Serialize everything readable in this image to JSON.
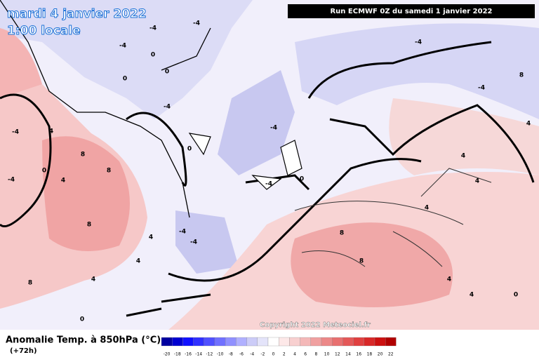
{
  "header": {
    "date": "mardi 4 janvier 2022",
    "time": "1:00 locale",
    "run": "Run ECMWF 0Z du samedi 1 janvier 2022"
  },
  "map": {
    "contour_labels": [
      "-4",
      "-4",
      "-4",
      "0",
      "0",
      "0",
      "-4",
      "-4",
      "0",
      "-4",
      "0",
      "8",
      "8",
      "8",
      "4",
      "0",
      "4",
      "-4",
      "-4",
      "-4",
      "-4",
      "4",
      "4",
      "8",
      "4",
      "8",
      "8",
      "4",
      "4",
      "4",
      "-4",
      "-4",
      "8",
      "4",
      "4",
      "4",
      "0",
      "0"
    ],
    "copyright": "Copyright 2022 Meteociel.fr"
  },
  "legend": {
    "title": "Anomalie Temp. à 850hPa (°C)",
    "subtitle": "(+72h)",
    "labels": [
      -20,
      -18,
      -16,
      -14,
      -12,
      -10,
      -8,
      -6,
      -4,
      -2,
      0,
      2,
      4,
      6,
      8,
      10,
      12,
      14,
      16,
      18,
      20,
      22
    ],
    "colors": [
      "#0000a0",
      "#0000d0",
      "#1010ff",
      "#3030ff",
      "#5050ff",
      "#7070ff",
      "#9090ff",
      "#b0b0ff",
      "#ccccf8",
      "#e4e4fa",
      "#ffffff",
      "#fde8e8",
      "#f8d0d0",
      "#f4b8b8",
      "#f0a0a0",
      "#ec8888",
      "#e87070",
      "#e45858",
      "#e04040",
      "#d82828",
      "#cc1010",
      "#b00000"
    ]
  }
}
